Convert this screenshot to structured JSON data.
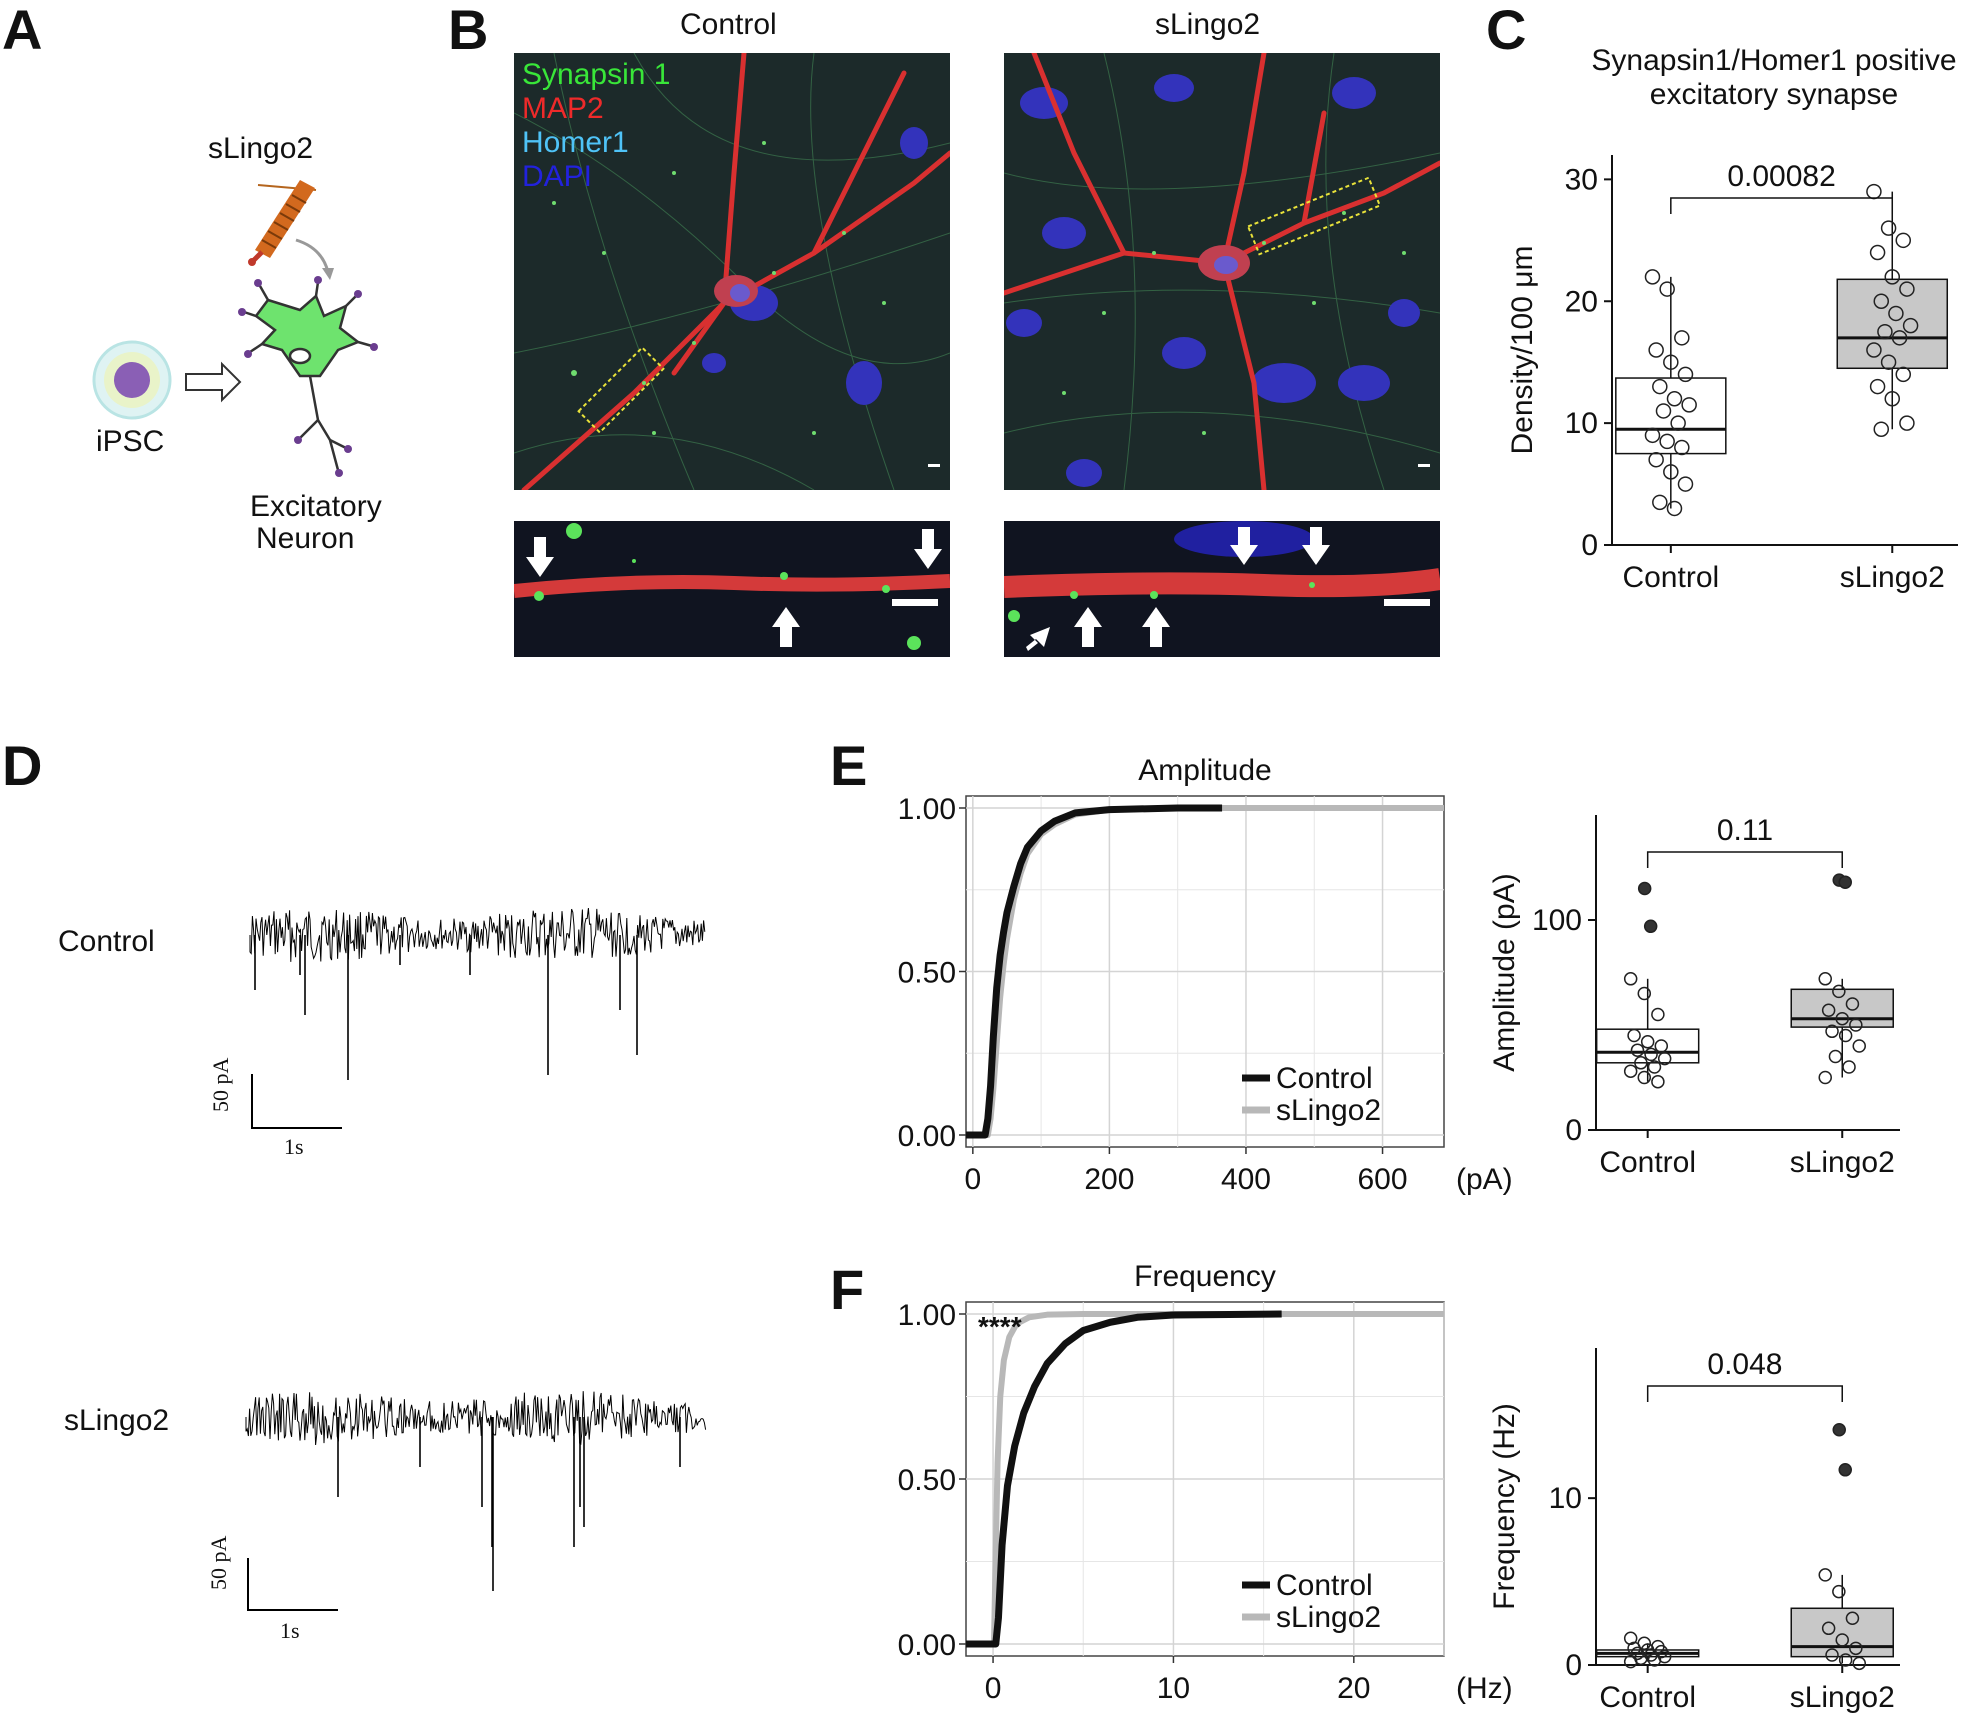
{
  "panels": {
    "A": {
      "letter": "A",
      "treatment": "sLingo2",
      "cell_from": "iPSC",
      "cell_to_line1": "Excitatory",
      "cell_to_line2": "Neuron"
    },
    "B": {
      "letter": "B",
      "col_left": "Control",
      "col_right": "sLingo2",
      "legend": [
        {
          "label": "Synapsin 1",
          "color": "#39e639"
        },
        {
          "label": "MAP2",
          "color": "#ee2a2a"
        },
        {
          "label": "Homer1",
          "color": "#4fc3f7"
        },
        {
          "label": "DAPI",
          "color": "#2222dd"
        }
      ]
    },
    "C": {
      "letter": "C"
    },
    "D": {
      "letter": "D",
      "traces": [
        {
          "label": "Control",
          "scale_y": "50 pA",
          "scale_x": "1s"
        },
        {
          "label": "sLingo2",
          "scale_y": "50 pA",
          "scale_x": "1s"
        }
      ]
    },
    "E": {
      "letter": "E"
    },
    "F": {
      "letter": "F"
    }
  },
  "chart_data": [
    {
      "id": "C",
      "type": "box",
      "title": "Synapsin1/Homer1 positive excitatory synapse",
      "title_line1": "Synapsin1/Homer1 positive",
      "title_line2": "excitatory synapse",
      "ylabel": "Density/100 μm",
      "ylim": [
        0,
        32
      ],
      "yticks": [
        "0",
        "10",
        "20",
        "30"
      ],
      "categories": [
        "Control",
        "sLingo2"
      ],
      "boxes": [
        {
          "name": "Control",
          "q1": 7.5,
          "median": 9.5,
          "q3": 13.7,
          "whisker_low": 3,
          "whisker_high": 22,
          "fill": "#ffffff",
          "points": [
            22,
            21,
            17,
            16,
            15,
            14,
            13,
            12,
            11.5,
            11,
            10,
            9,
            8.5,
            8,
            7,
            6,
            5,
            3.5,
            3
          ]
        },
        {
          "name": "sLingo2",
          "q1": 14.5,
          "median": 17,
          "q3": 21.8,
          "whisker_low": 9.5,
          "whisker_high": 29,
          "fill": "#c8c8c8",
          "points": [
            29,
            26,
            25,
            24,
            22,
            21,
            20,
            19,
            18,
            17.5,
            17,
            16,
            15,
            14,
            13,
            12,
            10,
            9.5
          ]
        }
      ],
      "pvalue": "0.00082"
    },
    {
      "id": "E-cdf",
      "type": "line",
      "title": "Amplitude",
      "xunit": "(pA)",
      "xlim": [
        -10,
        690
      ],
      "ylim": [
        0,
        1
      ],
      "xticks": [
        "0",
        "200",
        "400",
        "600"
      ],
      "yticks": [
        "0.00",
        "0.50",
        "1.00"
      ],
      "series": [
        {
          "name": "Control",
          "color": "#111111",
          "x": [
            -10,
            18,
            22,
            26,
            30,
            35,
            40,
            45,
            50,
            60,
            70,
            80,
            100,
            120,
            150,
            200,
            300,
            365
          ],
          "y": [
            0,
            0,
            0.05,
            0.15,
            0.3,
            0.45,
            0.55,
            0.62,
            0.68,
            0.76,
            0.83,
            0.88,
            0.93,
            0.96,
            0.985,
            0.995,
            1,
            1
          ]
        },
        {
          "name": "sLingo2",
          "color": "#b8b8b8",
          "x": [
            -10,
            22,
            26,
            30,
            35,
            40,
            45,
            50,
            60,
            70,
            80,
            100,
            120,
            150,
            200,
            300,
            690
          ],
          "y": [
            0,
            0,
            0.05,
            0.14,
            0.28,
            0.42,
            0.52,
            0.6,
            0.72,
            0.8,
            0.86,
            0.92,
            0.95,
            0.98,
            0.995,
            1,
            1
          ]
        }
      ]
    },
    {
      "id": "E-box",
      "type": "box",
      "ylabel": "Amplitude (pA)",
      "ylim": [
        0,
        150
      ],
      "yticks": [
        "0",
        "100"
      ],
      "categories": [
        "Control",
        "sLingo2"
      ],
      "boxes": [
        {
          "name": "Control",
          "q1": 32,
          "median": 37,
          "q3": 48,
          "whisker_low": 23,
          "whisker_high": 72,
          "fill": "#ffffff",
          "points": [
            72,
            65,
            55,
            45,
            42,
            40,
            38,
            36,
            34,
            32,
            30,
            28,
            25,
            23
          ],
          "outliers": [
            115,
            97
          ]
        },
        {
          "name": "sLingo2",
          "q1": 49,
          "median": 53,
          "q3": 67,
          "whisker_low": 25,
          "whisker_high": 72,
          "fill": "#c8c8c8",
          "points": [
            72,
            66,
            60,
            57,
            53,
            50,
            47,
            45,
            40,
            35,
            30,
            25
          ],
          "outliers": [
            119,
            118
          ]
        }
      ],
      "pvalue": "0.11"
    },
    {
      "id": "F-cdf",
      "type": "line",
      "title": "Frequency",
      "xunit": "(Hz)",
      "xlim": [
        -1.5,
        25
      ],
      "ylim": [
        0,
        1
      ],
      "xticks": [
        "0",
        "10",
        "20"
      ],
      "yticks": [
        "0.00",
        "0.50",
        "1.00"
      ],
      "annotation": "****",
      "series": [
        {
          "name": "Control",
          "color": "#111111",
          "x": [
            -1.5,
            0.15,
            0.3,
            0.5,
            0.8,
            1.2,
            1.7,
            2.3,
            3,
            4,
            5,
            6.5,
            8,
            10,
            16
          ],
          "y": [
            0,
            0,
            0.08,
            0.3,
            0.48,
            0.6,
            0.7,
            0.78,
            0.85,
            0.91,
            0.95,
            0.975,
            0.99,
            0.997,
            1
          ]
        },
        {
          "name": "sLingo2",
          "color": "#b8b8b8",
          "x": [
            -1.5,
            0.05,
            0.12,
            0.25,
            0.4,
            0.6,
            0.9,
            1.3,
            2,
            3,
            5,
            25
          ],
          "y": [
            0,
            0,
            0.2,
            0.55,
            0.75,
            0.86,
            0.93,
            0.97,
            0.99,
            0.998,
            1,
            1
          ]
        }
      ]
    },
    {
      "id": "F-box",
      "type": "box",
      "ylabel": "Frequency (Hz)",
      "ylim": [
        0,
        19
      ],
      "yticks": [
        "0",
        "10"
      ],
      "categories": [
        "Control",
        "sLingo2"
      ],
      "boxes": [
        {
          "name": "Control",
          "q1": 0.5,
          "median": 0.7,
          "q3": 0.9,
          "whisker_low": 0.2,
          "whisker_high": 1.3,
          "fill": "#ffffff",
          "points": [
            1.6,
            1.3,
            1.1,
            1.0,
            0.9,
            0.8,
            0.7,
            0.6,
            0.5,
            0.4,
            0.3,
            0.2
          ]
        },
        {
          "name": "sLingo2",
          "q1": 0.5,
          "median": 1.1,
          "q3": 3.4,
          "whisker_low": 0.1,
          "whisker_high": 5.4,
          "fill": "#c8c8c8",
          "points": [
            5.4,
            4.4,
            2.8,
            2.2,
            1.5,
            1.0,
            0.6,
            0.3,
            0.1
          ],
          "outliers": [
            14.1,
            11.7
          ]
        }
      ],
      "pvalue": "0.048"
    }
  ]
}
